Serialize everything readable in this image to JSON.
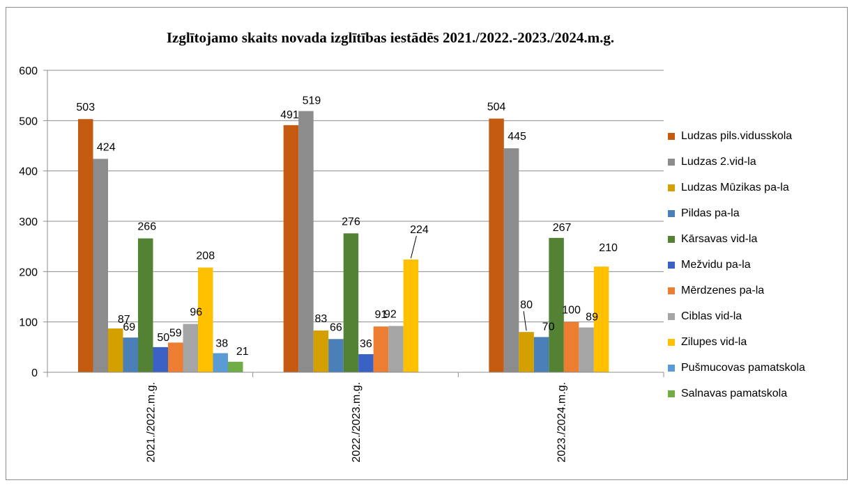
{
  "chart_data": {
    "type": "bar",
    "title": "Izglītojamo skaits novada izglītības iestādēs 2021./2022.-2023./2024.m.g.",
    "categories": [
      "2021./2022.m.g.",
      "2022./2023.m.g.",
      "2023./2024.m.g."
    ],
    "ylim": [
      0,
      600
    ],
    "yticks": [
      0,
      100,
      200,
      300,
      400,
      500,
      600
    ],
    "grid": true,
    "legend_position": "right",
    "series": [
      {
        "name": "Ludzas pils.vidusskola",
        "color": "#c55a11",
        "values": [
          503,
          491,
          504
        ]
      },
      {
        "name": "Ludzas 2.vid-la",
        "color": "#8c8c8c",
        "values": [
          424,
          519,
          445
        ]
      },
      {
        "name": "Ludzas Mūzikas pa-la",
        "color": "#d4a000",
        "values": [
          87,
          83,
          80
        ]
      },
      {
        "name": "Pildas pa-la",
        "color": "#4a7fb8",
        "values": [
          69,
          66,
          70
        ]
      },
      {
        "name": "Kārsavas vid-la",
        "color": "#548235",
        "values": [
          266,
          276,
          267
        ]
      },
      {
        "name": "Mežvidu pa-la",
        "color": "#3a62c4",
        "values": [
          50,
          36,
          null
        ]
      },
      {
        "name": "Mērdzenes pa-la",
        "color": "#ed7d31",
        "values": [
          59,
          91,
          100
        ]
      },
      {
        "name": "Ciblas vid-la",
        "color": "#a5a5a5",
        "values": [
          96,
          92,
          89
        ]
      },
      {
        "name": "Zilupes vid-la",
        "color": "#ffc000",
        "values": [
          208,
          224,
          210
        ]
      },
      {
        "name": "Pušmucovas pamatskola",
        "color": "#5b9bd5",
        "values": [
          38,
          null,
          null
        ]
      },
      {
        "name": "Salnavas pamatskola",
        "color": "#70ad47",
        "values": [
          21,
          null,
          null
        ]
      }
    ]
  }
}
